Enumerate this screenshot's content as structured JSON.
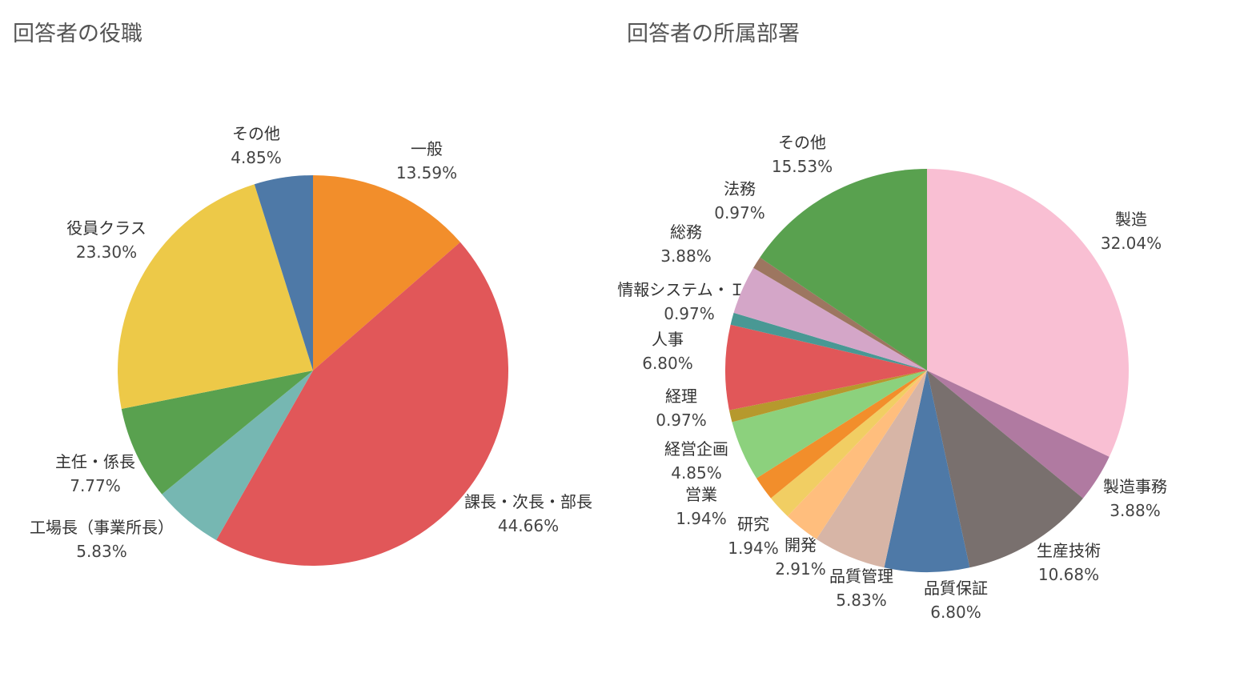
{
  "chart_data": [
    {
      "type": "pie",
      "title": "回答者の役職",
      "slices": [
        {
          "label": "一般",
          "value": 13.59,
          "pct_label": "13.59%",
          "color": "#F28E2B"
        },
        {
          "label": "課長・次長・部長",
          "value": 44.66,
          "pct_label": "44.66%",
          "color": "#E15759"
        },
        {
          "label": "工場長（事業所長）",
          "value": 5.83,
          "pct_label": "5.83%",
          "color": "#76B7B2"
        },
        {
          "label": "主任・係長",
          "value": 7.77,
          "pct_label": "7.77%",
          "color": "#59A14F"
        },
        {
          "label": "役員クラス",
          "value": 23.3,
          "pct_label": "23.30%",
          "color": "#EDC948"
        },
        {
          "label": "その他",
          "value": 4.85,
          "pct_label": "4.85%",
          "color": "#4E79A7"
        }
      ]
    },
    {
      "type": "pie",
      "title": "回答者の所属部署",
      "slices": [
        {
          "label": "製造",
          "value": 32.04,
          "pct_label": "32.04%",
          "color": "#F9BFD3"
        },
        {
          "label": "製造事務",
          "value": 3.88,
          "pct_label": "3.88%",
          "color": "#B07AA1"
        },
        {
          "label": "生産技術",
          "value": 10.68,
          "pct_label": "10.68%",
          "color": "#79706E"
        },
        {
          "label": "品質保証",
          "value": 6.8,
          "pct_label": "6.80%",
          "color": "#4E79A7"
        },
        {
          "label": "品質管理",
          "value": 5.83,
          "pct_label": "5.83%",
          "color": "#D7B5A6"
        },
        {
          "label": "開発",
          "value": 2.91,
          "pct_label": "2.91%",
          "color": "#FFBE7D"
        },
        {
          "label": "研究",
          "value": 1.94,
          "pct_label": "1.94%",
          "color": "#F1CE63"
        },
        {
          "label": "営業",
          "value": 1.94,
          "pct_label": "1.94%",
          "color": "#F28E2B"
        },
        {
          "label": "経営企画",
          "value": 4.85,
          "pct_label": "4.85%",
          "color": "#8CD17D"
        },
        {
          "label": "経理",
          "value": 0.97,
          "pct_label": "0.97%",
          "color": "#B6992D"
        },
        {
          "label": "人事",
          "value": 6.8,
          "pct_label": "6.80%",
          "color": "#E15759"
        },
        {
          "label": "情報システム・ＩＴ",
          "value": 0.97,
          "pct_label": "0.97%",
          "color": "#499894"
        },
        {
          "label": "総務",
          "value": 3.88,
          "pct_label": "3.88%",
          "color": "#D4A6C8"
        },
        {
          "label": "法務",
          "value": 0.97,
          "pct_label": "0.97%",
          "color": "#9D7660"
        },
        {
          "label": "その他",
          "value": 15.53,
          "pct_label": "15.53%",
          "color": "#59A14F"
        }
      ]
    }
  ]
}
